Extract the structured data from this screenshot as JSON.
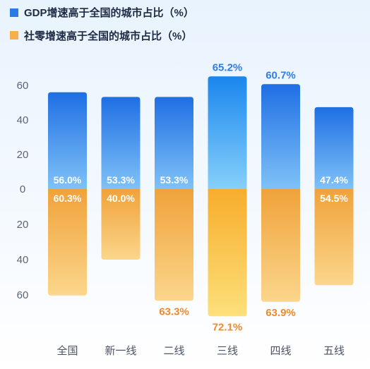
{
  "chart_data": {
    "type": "bar",
    "categories": [
      "全国",
      "新一线",
      "二线",
      "三线",
      "四线",
      "五线"
    ],
    "series": [
      {
        "name": "GDP增速高于全国的城市占比（%）",
        "values": [
          56.0,
          53.3,
          53.3,
          65.2,
          60.7,
          47.4
        ],
        "color": "#2a7be6"
      },
      {
        "name": "社零增速高于全国的城市占比（%）",
        "values": [
          60.3,
          40.0,
          63.3,
          72.1,
          63.9,
          54.5
        ],
        "color": "#f2a53a"
      }
    ],
    "labels_top": [
      "56.0%",
      "53.3%",
      "53.3%",
      "65.2%",
      "60.7%",
      "47.4%"
    ],
    "labels_bottom": [
      "60.3%",
      "40.0%",
      "63.3%",
      "72.1%",
      "63.9%",
      "54.5%"
    ],
    "yticks_up": [
      "0",
      "20",
      "40",
      "60"
    ],
    "yticks_down": [
      "20",
      "40",
      "60"
    ],
    "ylim_up": [
      0,
      65.2
    ],
    "ylim_down": [
      0,
      72.1
    ],
    "grid": false,
    "legend_position": "top-left"
  }
}
